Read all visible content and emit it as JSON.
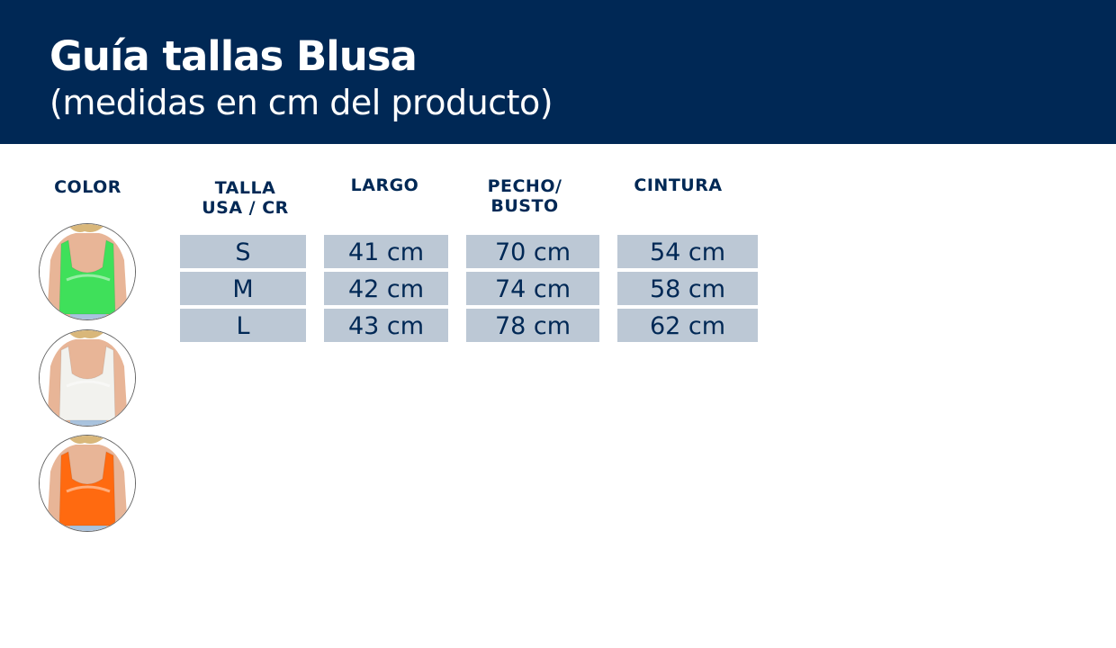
{
  "header": {
    "title": "Guía tallas Blusa",
    "subtitle": "(medidas en cm del producto)"
  },
  "columns": {
    "color": "COLOR",
    "talla": [
      "TALLA",
      "USA / CR"
    ],
    "largo": "LARGO",
    "pecho": [
      "PECHO/",
      "BUSTO"
    ],
    "cintura": "CINTURA"
  },
  "colors": [
    {
      "name": "green",
      "hex": "#3fe05a"
    },
    {
      "name": "white",
      "hex": "#f2f2ee"
    },
    {
      "name": "orange",
      "hex": "#ff6a10"
    }
  ],
  "rows": [
    {
      "talla": "S",
      "largo": "41 cm",
      "pecho": "70 cm",
      "cintura": "54 cm"
    },
    {
      "talla": "M",
      "largo": "42 cm",
      "pecho": "74 cm",
      "cintura": "58 cm"
    },
    {
      "talla": "L",
      "largo": "43 cm",
      "pecho": "78 cm",
      "cintura": "62 cm"
    }
  ],
  "theme": {
    "header_bg": "#002855",
    "cell_bg": "#bcc8d5",
    "text": "#002855"
  }
}
